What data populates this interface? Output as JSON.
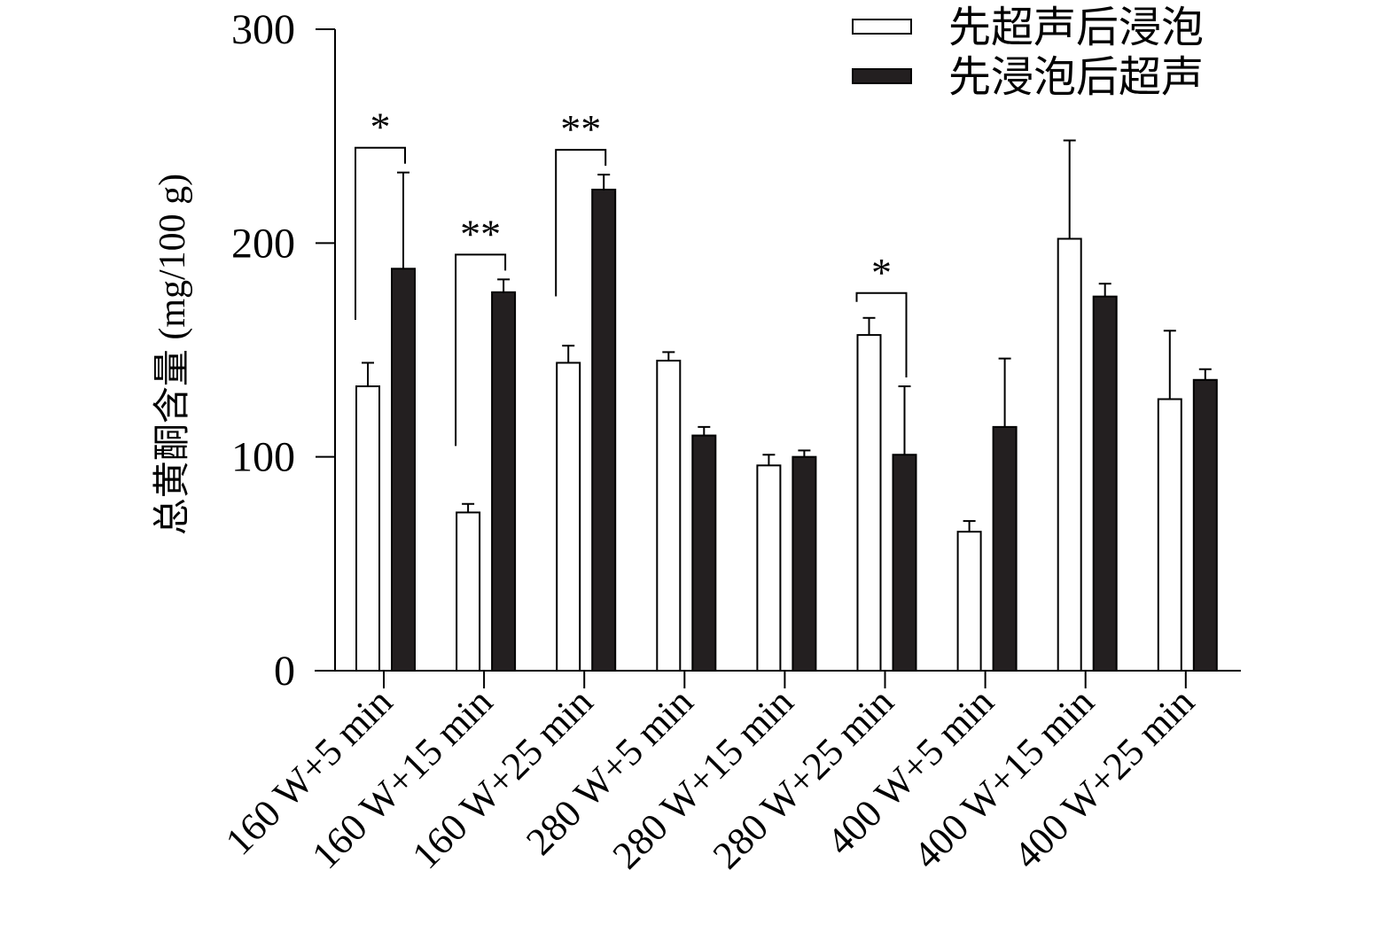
{
  "chart_data": {
    "type": "bar",
    "title": "",
    "xlabel": "",
    "ylabel": "总黄酮含量 (mg/100 g)",
    "ylim": [
      0,
      300
    ],
    "yticks": [
      0,
      100,
      200,
      300
    ],
    "legend_position": "top-right",
    "categories": [
      "160 W+5 min",
      "160 W+15 min",
      "160 W+25 min",
      "280 W+5 min",
      "280 W+15 min",
      "280 W+25 min",
      "400 W+5 min",
      "400 W+15 min",
      "400 W+25 min"
    ],
    "series": [
      {
        "name": "先超声后浸泡",
        "fill": "#ffffff",
        "values": [
          133,
          74,
          144,
          145,
          96,
          157,
          65,
          202,
          127
        ],
        "errors": [
          11,
          4,
          8,
          4,
          5,
          8,
          5,
          46,
          32
        ]
      },
      {
        "name": "先浸泡后超声",
        "fill": "#231f20",
        "values": [
          188,
          177,
          225,
          110,
          100,
          101,
          114,
          175,
          136
        ],
        "errors": [
          45,
          6,
          7,
          4,
          3,
          32,
          32,
          6,
          5
        ]
      }
    ],
    "significance": [
      {
        "category_index": 0,
        "label": "*"
      },
      {
        "category_index": 1,
        "label": "**"
      },
      {
        "category_index": 2,
        "label": "**"
      },
      {
        "category_index": 5,
        "label": "*"
      }
    ]
  }
}
